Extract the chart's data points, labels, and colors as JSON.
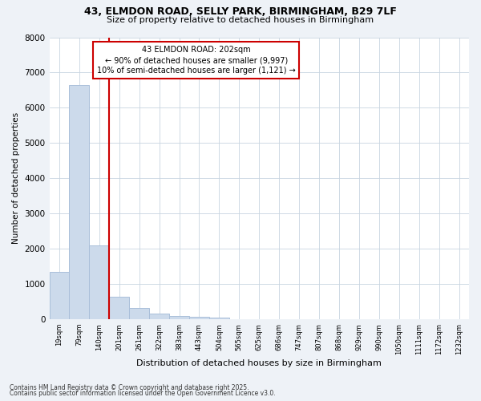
{
  "title_line1": "43, ELMDON ROAD, SELLY PARK, BIRMINGHAM, B29 7LF",
  "title_line2": "Size of property relative to detached houses in Birmingham",
  "xlabel": "Distribution of detached houses by size in Birmingham",
  "ylabel": "Number of detached properties",
  "bar_color": "#ccdaeb",
  "bar_edge_color": "#aabfda",
  "vline_color": "#cc0000",
  "annotation_text": "43 ELMDON ROAD: 202sqm\n← 90% of detached houses are smaller (9,997)\n10% of semi-detached houses are larger (1,121) →",
  "annotation_box_color": "#cc0000",
  "categories": [
    "19sqm",
    "79sqm",
    "140sqm",
    "201sqm",
    "261sqm",
    "322sqm",
    "383sqm",
    "443sqm",
    "504sqm",
    "565sqm",
    "625sqm",
    "686sqm",
    "747sqm",
    "807sqm",
    "868sqm",
    "929sqm",
    "990sqm",
    "1050sqm",
    "1111sqm",
    "1172sqm",
    "1232sqm"
  ],
  "values": [
    1350,
    6650,
    2100,
    650,
    320,
    160,
    100,
    60,
    50,
    0,
    0,
    0,
    0,
    0,
    0,
    0,
    0,
    0,
    0,
    0,
    0
  ],
  "ylim": [
    0,
    8000
  ],
  "yticks": [
    0,
    1000,
    2000,
    3000,
    4000,
    5000,
    6000,
    7000,
    8000
  ],
  "footer_line1": "Contains HM Land Registry data © Crown copyright and database right 2025.",
  "footer_line2": "Contains public sector information licensed under the Open Government Licence v3.0.",
  "background_color": "#eef2f7",
  "plot_background": "#ffffff",
  "grid_color": "#c8d4e0"
}
